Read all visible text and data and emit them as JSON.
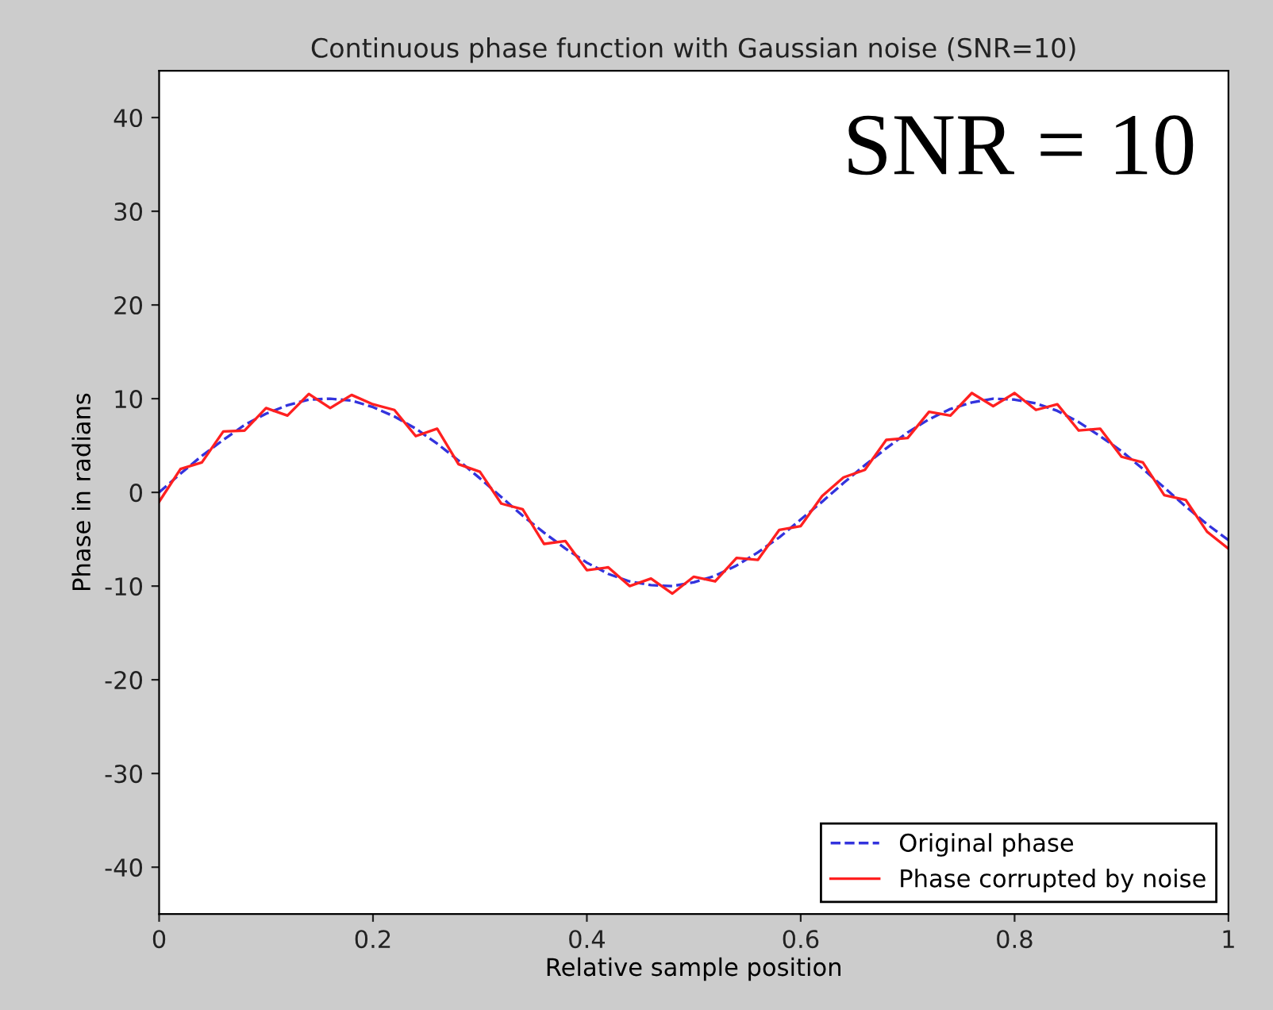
{
  "chart_data": {
    "type": "line",
    "title": "Continuous phase function with Gaussian noise (SNR=10)",
    "xlabel": "Relative sample position",
    "ylabel": "Phase in radians",
    "annotations": [
      "SNR = 10"
    ],
    "xlim": [
      0,
      1
    ],
    "xticks": [
      0,
      0.2,
      0.4,
      0.6,
      0.8,
      1
    ],
    "ylim": [
      -45,
      45
    ],
    "yticks": [
      -40,
      -30,
      -20,
      -10,
      0,
      10,
      20,
      30,
      40
    ],
    "grid": false,
    "legend": "bottom right",
    "x": [
      0,
      0.02,
      0.04,
      0.06,
      0.08,
      0.1,
      0.12,
      0.14,
      0.16,
      0.18,
      0.2,
      0.22,
      0.24,
      0.26,
      0.28,
      0.3,
      0.32,
      0.34,
      0.36,
      0.38,
      0.4,
      0.42,
      0.44,
      0.46,
      0.48,
      0.5,
      0.52,
      0.54,
      0.56,
      0.58,
      0.6,
      0.62,
      0.64,
      0.66,
      0.68,
      0.7,
      0.72,
      0.74,
      0.76,
      0.78,
      0.8,
      0.82,
      0.84,
      0.86,
      0.88,
      0.9,
      0.92,
      0.94,
      0.96,
      0.98,
      1
    ],
    "series": [
      {
        "name": "Original phase",
        "color": "#3333dd",
        "line_style": "dashed",
        "values": [
          0,
          2.0,
          3.9,
          5.6,
          7.2,
          8.4,
          9.3,
          9.9,
          10.0,
          9.8,
          9.1,
          8.1,
          6.8,
          5.2,
          3.4,
          1.5,
          -0.5,
          -2.5,
          -4.3,
          -6.0,
          -7.5,
          -8.7,
          -9.5,
          -9.9,
          -10.0,
          -9.6,
          -8.9,
          -7.8,
          -6.4,
          -4.8,
          -2.9,
          -1.0,
          1.0,
          2.9,
          4.7,
          6.4,
          7.8,
          8.9,
          9.6,
          10.0,
          9.9,
          9.5,
          8.7,
          7.5,
          6.0,
          4.4,
          2.5,
          0.5,
          -1.5,
          -3.4,
          -5.1
        ]
      },
      {
        "name": "Phase corrupted by noise",
        "color": "#ff2020",
        "line_style": "solid",
        "values": [
          -1.0,
          2.5,
          3.2,
          6.5,
          6.6,
          9.0,
          8.2,
          10.5,
          9.0,
          10.4,
          9.4,
          8.8,
          6.0,
          6.8,
          3.0,
          2.2,
          -1.2,
          -1.8,
          -5.5,
          -5.2,
          -8.3,
          -8.0,
          -10.0,
          -9.2,
          -10.8,
          -9.0,
          -9.5,
          -7.0,
          -7.2,
          -4.0,
          -3.6,
          -0.4,
          1.6,
          2.4,
          5.6,
          5.8,
          8.6,
          8.2,
          10.6,
          9.2,
          10.6,
          8.8,
          9.4,
          6.6,
          6.8,
          3.8,
          3.2,
          -0.3,
          -0.8,
          -4.2,
          -6.0
        ]
      }
    ]
  }
}
